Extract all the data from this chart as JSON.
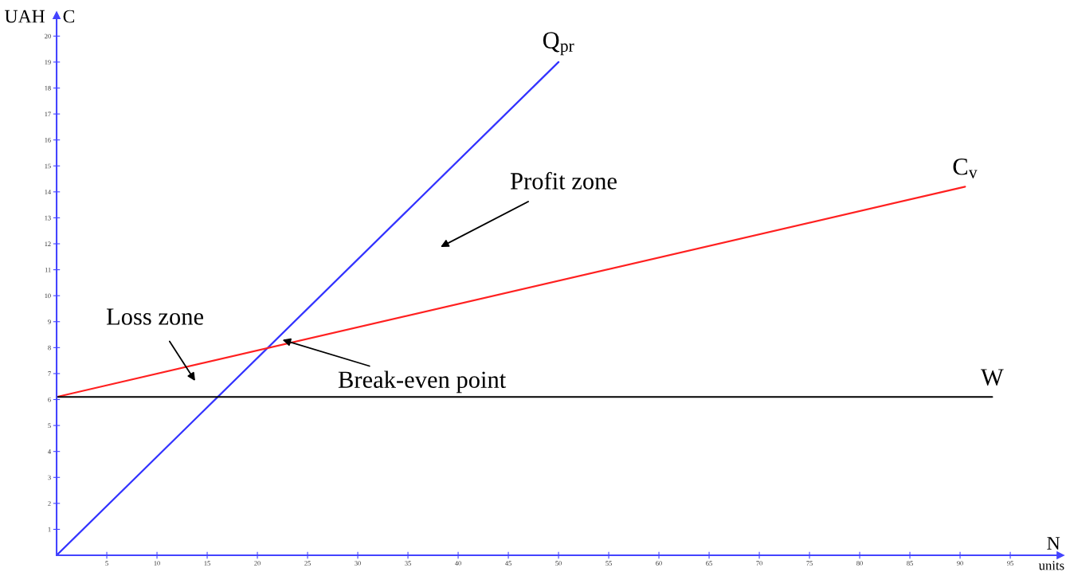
{
  "chart_data": {
    "type": "line",
    "xlabel": "N",
    "ylabel": "C",
    "xlim": [
      0,
      100
    ],
    "ylim": [
      0,
      20.8
    ],
    "xticks": [
      5,
      10,
      15,
      20,
      25,
      30,
      35,
      40,
      45,
      50,
      55,
      60,
      65,
      70,
      75,
      80,
      85,
      90,
      95
    ],
    "yticks": [
      1,
      2,
      3,
      4,
      5,
      6,
      7,
      8,
      9,
      10,
      11,
      12,
      13,
      14,
      15,
      16,
      17,
      18,
      19,
      20
    ],
    "grid": false,
    "legend": false,
    "marker": "none",
    "line_style": "solid",
    "series": [
      {
        "name": "Q$_{pr}$",
        "color": "#3333ff",
        "x": [
          0,
          50
        ],
        "values": [
          0,
          19
        ]
      },
      {
        "name": "C$_{v}$",
        "color": "#ff2020",
        "x": [
          0,
          90.5
        ],
        "values": [
          6.1,
          14.2
        ]
      },
      {
        "name": "W",
        "color": "#000000",
        "x": [
          0,
          93.2
        ],
        "values": [
          6.1,
          6.1
        ]
      }
    ],
    "annotations": [
      "Profit zone",
      "Loss zone",
      {
        "text": "Break-even point",
        "x": 22.5,
        "y": 8.3
      },
      "UAH",
      "units"
    ]
  }
}
